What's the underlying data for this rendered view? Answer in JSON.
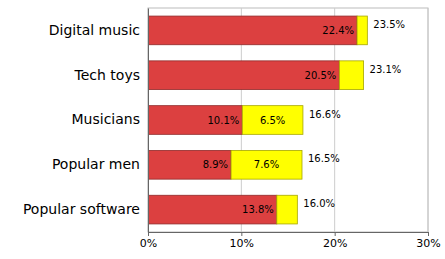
{
  "chart_data": {
    "type": "bar",
    "orientation": "horizontal",
    "stacked": true,
    "data_labels": true,
    "grid": true,
    "categories": [
      "Digital music",
      "Tech toys",
      "Musicians",
      "Popular men",
      "Popular software"
    ],
    "series": [
      {
        "color": "#dc4040",
        "values": [
          22.4,
          20.5,
          10.1,
          8.9,
          13.8
        ],
        "value_labels": [
          "22.4%",
          "20.5%",
          "10.1%",
          "8.9%",
          "13.8%"
        ]
      },
      {
        "color": "#ffff00",
        "values": [
          1.1,
          2.6,
          6.5,
          7.6,
          2.2
        ],
        "value_labels": [
          null,
          null,
          "6.5%",
          "7.6%",
          null
        ]
      }
    ],
    "totals": [
      23.5,
      23.1,
      16.6,
      16.5,
      16.0
    ],
    "total_labels": [
      "23.5%",
      "23.1%",
      "16.6%",
      "16.5%",
      "16.0%"
    ],
    "xlim": [
      0,
      30
    ],
    "xticks": [
      {
        "value": 0,
        "label": "0%"
      },
      {
        "value": 10,
        "label": "10%"
      },
      {
        "value": 20,
        "label": "20%"
      },
      {
        "value": 30,
        "label": "30%"
      }
    ]
  }
}
